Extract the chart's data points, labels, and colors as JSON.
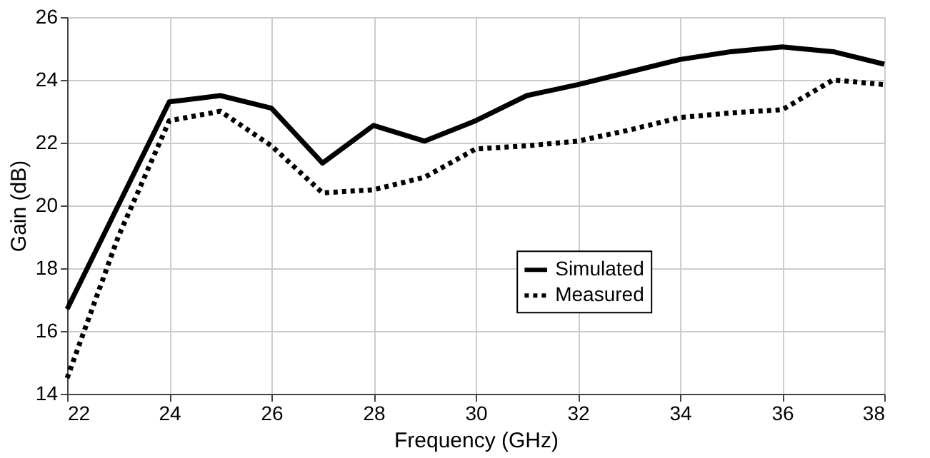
{
  "chart_data": {
    "type": "line",
    "xlabel": "Frequency (GHz)",
    "ylabel": "Gain (dB)",
    "x": [
      22,
      23,
      24,
      25,
      26,
      27,
      28,
      29,
      30,
      31,
      32,
      33,
      34,
      35,
      36,
      37,
      38
    ],
    "series": [
      {
        "name": "Simulated",
        "color": "#000000",
        "line_style": "solid",
        "values": [
          16.7,
          20.0,
          23.3,
          23.5,
          23.1,
          21.35,
          22.55,
          22.05,
          22.7,
          23.5,
          23.85,
          24.25,
          24.65,
          24.9,
          25.05,
          24.9,
          24.5
        ]
      },
      {
        "name": "Measured",
        "color": "#000000",
        "line_style": "dotted",
        "values": [
          14.5,
          19.0,
          22.7,
          23.0,
          21.9,
          20.4,
          20.5,
          20.9,
          21.8,
          21.9,
          22.05,
          22.4,
          22.8,
          22.95,
          23.05,
          24.0,
          23.85
        ]
      }
    ],
    "xlim": [
      22,
      38
    ],
    "xticks": [
      22,
      24,
      26,
      28,
      30,
      32,
      34,
      36,
      38
    ],
    "ylim": [
      14,
      26
    ],
    "yticks": [
      14,
      16,
      18,
      20,
      22,
      24,
      26
    ],
    "grid": true,
    "legend": "right",
    "marker": "none"
  }
}
